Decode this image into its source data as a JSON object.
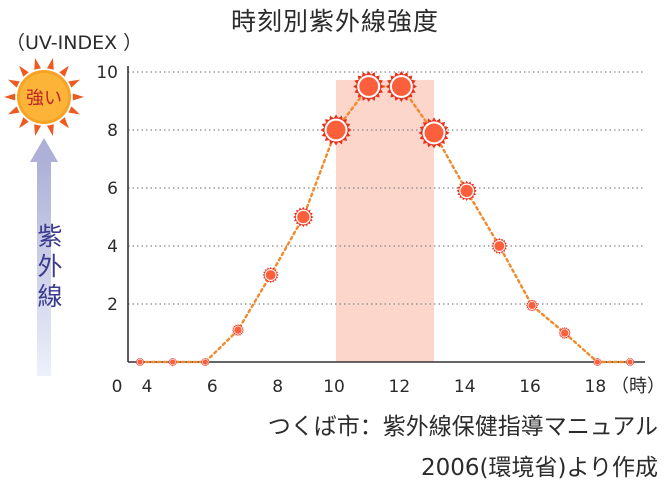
{
  "title": "時刻別紫外線強度",
  "y_unit_label": "（UV-INDEX ）",
  "legend_badge": "強い",
  "side_label": [
    "紫",
    "外",
    "線"
  ],
  "source_line1": "つくば市：紫外線保健指導マニュアル",
  "source_line2": "2006(環境省)より作成",
  "colors": {
    "sun_outer": "#e8321e",
    "sun_inner": "#fb5f3c",
    "line": "#f08a2a",
    "band": "#fcd5cb",
    "axis": "#333333",
    "grid": "#888888",
    "badge_fill": "#fbb437",
    "badge_ray": "#ee5b22",
    "arrow": "#c5c6e2",
    "side_text": "#3d3b8e"
  },
  "chart_data": {
    "type": "scatter",
    "title": "時刻別紫外線強度",
    "ylabel": "（UV-INDEX ）",
    "xlabel": "",
    "x_unit_label": "（時）",
    "xlim": [
      3.5,
      19
    ],
    "ylim": [
      0,
      10
    ],
    "x_ticks": [
      "0",
      "4",
      "6",
      "8",
      "10",
      "12",
      "14",
      "16",
      "18"
    ],
    "y_ticks": [
      "2",
      "4",
      "6",
      "8",
      "10"
    ],
    "grid": "horizontal-dotted",
    "highlight_band": {
      "x_from": 10,
      "x_to": 13
    },
    "series": [
      {
        "x": [
          4,
          5,
          6,
          7,
          8,
          9,
          10,
          11,
          12,
          13,
          14,
          15,
          16,
          17,
          18,
          19
        ],
        "values": [
          0,
          0,
          0,
          1.1,
          3.0,
          5.0,
          8.0,
          9.5,
          9.5,
          7.9,
          5.9,
          4.0,
          1.95,
          1.0,
          0,
          0
        ]
      }
    ]
  }
}
